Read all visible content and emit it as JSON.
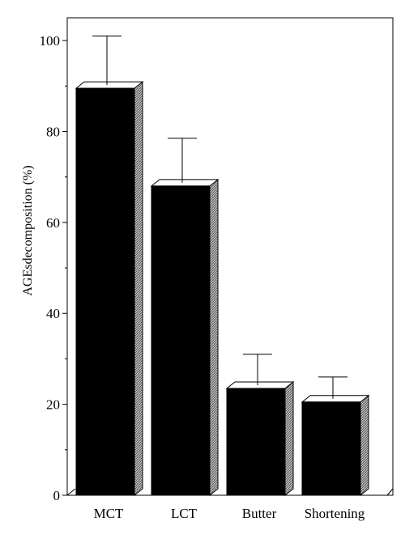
{
  "chart_data": {
    "type": "bar",
    "title": "",
    "xlabel": "",
    "ylabel": "AGEsdecomposition (%)",
    "categories": [
      "MCT",
      "LCT",
      "Butter",
      "Shortening"
    ],
    "values": [
      89.5,
      68,
      23.5,
      20.5
    ],
    "error_upper": [
      101,
      78.5,
      31,
      26
    ],
    "ylim": [
      0,
      105
    ],
    "yticks": [
      0,
      20,
      40,
      60,
      80,
      100
    ],
    "grid": false,
    "legend": "none",
    "colors": {
      "bar_front": "#000000",
      "bar_side": "#9a9a9a",
      "bar_top": "#ffffff",
      "axis": "#000000"
    }
  }
}
